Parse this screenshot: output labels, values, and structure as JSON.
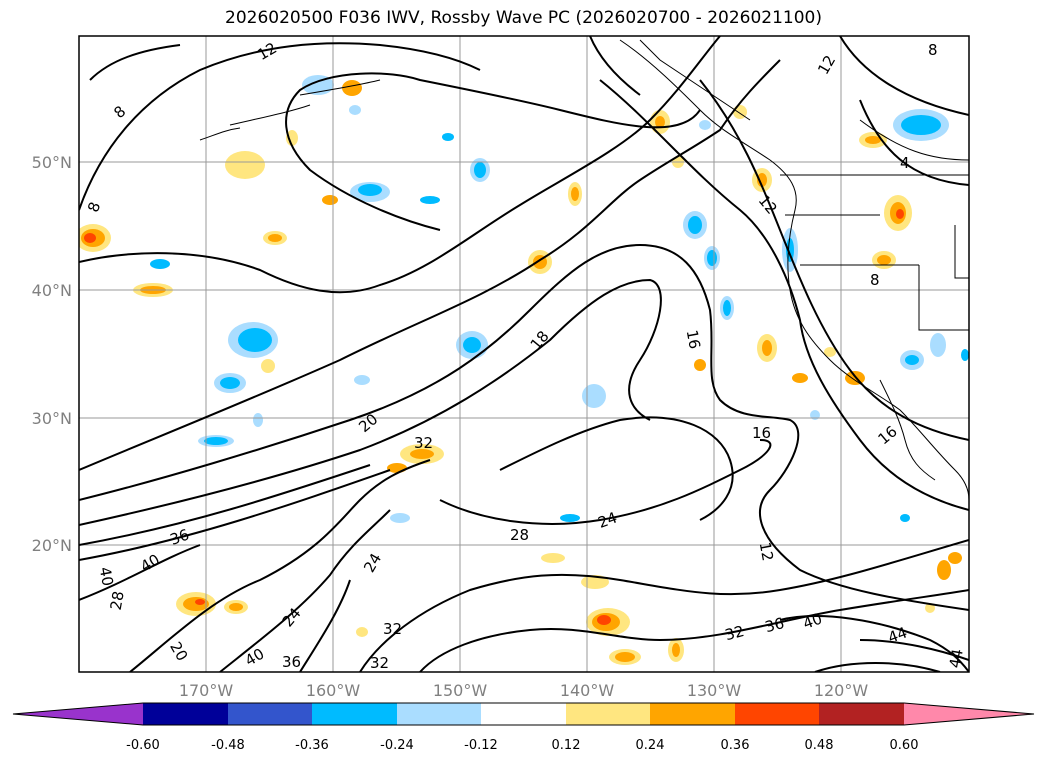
{
  "title": "2026020500 F036 IWV, Rossby Wave PC (2026020700 - 2026021100)",
  "lat_labels": [
    "50°N",
    "40°N",
    "30°N",
    "20°N"
  ],
  "lon_labels": [
    "170°W",
    "160°W",
    "150°W",
    "140°W",
    "130°W",
    "120°W"
  ],
  "colorbar": {
    "ticks": [
      "-0.60",
      "-0.48",
      "-0.36",
      "-0.24",
      "-0.12",
      "0.12",
      "0.24",
      "0.36",
      "0.48",
      "0.60"
    ],
    "colors": [
      "#9933cc",
      "#000099",
      "#3355cc",
      "#00bbff",
      "#aaddff",
      "#ffffff",
      "#ffe680",
      "#ffa500",
      "#ff4500",
      "#b22222",
      "#ff88aa"
    ]
  },
  "contour_labels": [
    "12",
    "8",
    "8",
    "12",
    "8",
    "4",
    "12",
    "8",
    "16",
    "18",
    "16",
    "20",
    "32",
    "24",
    "28",
    "24",
    "12",
    "16",
    "36",
    "40",
    "28",
    "40",
    "24",
    "20",
    "32",
    "32",
    "36",
    "40",
    "44",
    "44",
    "36",
    "40",
    "32"
  ]
}
